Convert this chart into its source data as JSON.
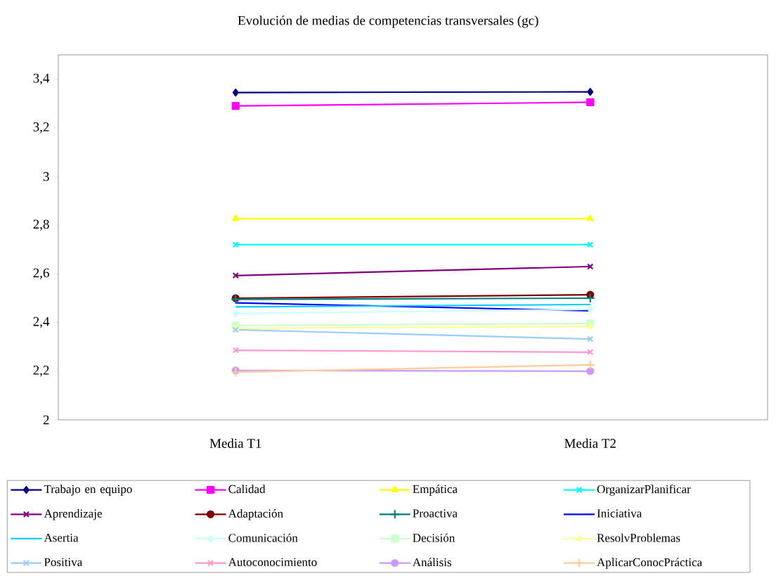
{
  "chart_data": {
    "type": "line",
    "title": "Evolución de medias de competencias transversales (gc)",
    "categories": [
      "Media T1",
      "Media T2"
    ],
    "ylim": [
      2,
      3.5
    ],
    "yticks": [
      2,
      {
        "value": 2.2,
        "label": "2,2"
      },
      {
        "value": 2.4,
        "label": "2,4"
      },
      {
        "value": 2.6,
        "label": "2,6"
      },
      {
        "value": 2.8,
        "label": "2,8"
      },
      3,
      {
        "value": 3.2,
        "label": "3,2"
      },
      {
        "value": 3.4,
        "label": "3,4"
      }
    ],
    "legend": "bottom",
    "grid": false,
    "series": [
      {
        "name": "Trabajo en equipo",
        "color": "#000080",
        "marker": "diamond",
        "values": [
          3.345,
          3.348
        ]
      },
      {
        "name": "Calidad",
        "color": "#ff00ff",
        "marker": "square",
        "values": [
          3.29,
          3.305
        ]
      },
      {
        "name": "Empática",
        "color": "#ffff00",
        "marker": "triangle",
        "values": [
          2.827,
          2.827
        ]
      },
      {
        "name": "OrganizarPlanificar",
        "color": "#00ffff",
        "marker": "cross",
        "values": [
          2.72,
          2.72
        ]
      },
      {
        "name": "Aprendizaje",
        "color": "#800080",
        "marker": "cross",
        "values": [
          2.593,
          2.63
        ]
      },
      {
        "name": "Adaptación",
        "color": "#800000",
        "marker": "circle",
        "values": [
          2.5,
          2.514
        ]
      },
      {
        "name": "Proactiva",
        "color": "#008080",
        "marker": "plus",
        "values": [
          2.495,
          2.5
        ]
      },
      {
        "name": "Iniciativa",
        "color": "#0000ff",
        "marker": "none",
        "values": [
          2.481,
          2.448
        ]
      },
      {
        "name": "Asertia",
        "color": "#00ccff",
        "marker": "none",
        "values": [
          2.464,
          2.474
        ]
      },
      {
        "name": "Comunicación",
        "color": "#ccffff",
        "marker": "diamond",
        "values": [
          2.437,
          2.454
        ]
      },
      {
        "name": "Decisión",
        "color": "#ccffcc",
        "marker": "square",
        "values": [
          2.388,
          2.396
        ]
      },
      {
        "name": "ResolvProblemas",
        "color": "#ffff99",
        "marker": "triangle",
        "values": [
          2.376,
          2.384
        ]
      },
      {
        "name": "Positiva",
        "color": "#99ccff",
        "marker": "cross",
        "values": [
          2.37,
          2.332
        ]
      },
      {
        "name": "Autoconocimiento",
        "color": "#ff99cc",
        "marker": "cross",
        "values": [
          2.286,
          2.278
        ]
      },
      {
        "name": "Análisis",
        "color": "#cc99ff",
        "marker": "circle",
        "values": [
          2.203,
          2.2
        ]
      },
      {
        "name": "AplicarConocPráctica",
        "color": "#ffcc99",
        "marker": "plus",
        "values": [
          2.196,
          2.226
        ]
      }
    ]
  }
}
